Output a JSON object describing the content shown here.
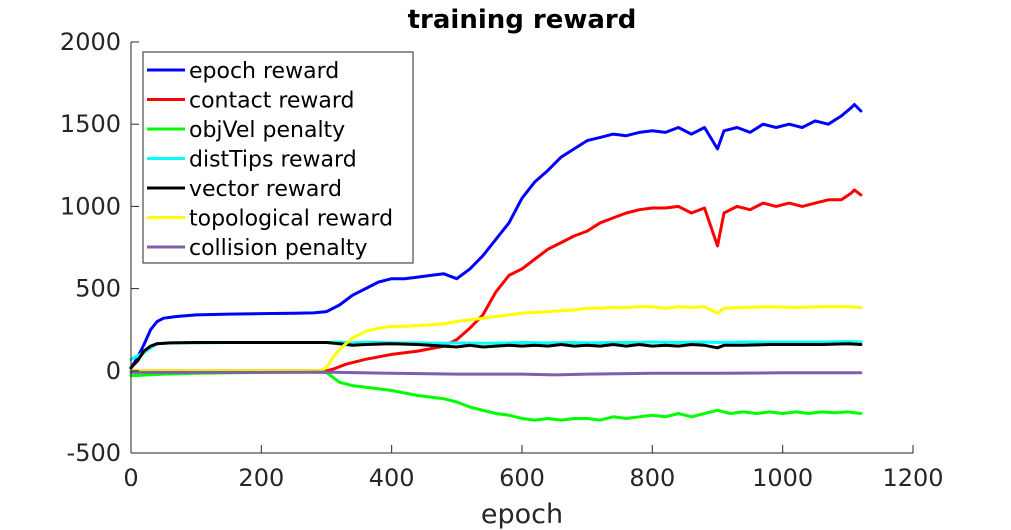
{
  "chart_data": {
    "type": "line",
    "title": "training reward",
    "xlabel": "epoch",
    "ylabel": "",
    "xlim": [
      0,
      1200
    ],
    "ylim": [
      -500,
      2000
    ],
    "xticks": [
      0,
      200,
      400,
      600,
      800,
      1000,
      1200
    ],
    "yticks": [
      -500,
      0,
      500,
      1000,
      1500,
      2000
    ],
    "x_tick_labels": [
      "0",
      "200",
      "400",
      "600",
      "800",
      "1000",
      "1200"
    ],
    "y_tick_labels": [
      "-500",
      "0",
      "500",
      "1000",
      "1500",
      "2000"
    ],
    "legend": "top-left",
    "grid": false,
    "series": [
      {
        "name": "epoch reward",
        "color": "#0000ff",
        "points": [
          [
            0,
            15
          ],
          [
            10,
            80
          ],
          [
            20,
            160
          ],
          [
            30,
            250
          ],
          [
            40,
            300
          ],
          [
            50,
            320
          ],
          [
            70,
            330
          ],
          [
            100,
            340
          ],
          [
            150,
            345
          ],
          [
            200,
            348
          ],
          [
            250,
            350
          ],
          [
            280,
            352
          ],
          [
            300,
            360
          ],
          [
            320,
            400
          ],
          [
            340,
            460
          ],
          [
            360,
            500
          ],
          [
            380,
            540
          ],
          [
            400,
            560
          ],
          [
            420,
            560
          ],
          [
            440,
            570
          ],
          [
            460,
            580
          ],
          [
            480,
            590
          ],
          [
            500,
            560
          ],
          [
            520,
            620
          ],
          [
            540,
            700
          ],
          [
            560,
            800
          ],
          [
            580,
            900
          ],
          [
            600,
            1050
          ],
          [
            620,
            1150
          ],
          [
            640,
            1220
          ],
          [
            660,
            1300
          ],
          [
            680,
            1350
          ],
          [
            700,
            1400
          ],
          [
            720,
            1420
          ],
          [
            740,
            1440
          ],
          [
            760,
            1430
          ],
          [
            780,
            1450
          ],
          [
            800,
            1460
          ],
          [
            820,
            1450
          ],
          [
            840,
            1480
          ],
          [
            860,
            1440
          ],
          [
            880,
            1480
          ],
          [
            900,
            1350
          ],
          [
            910,
            1460
          ],
          [
            930,
            1480
          ],
          [
            950,
            1450
          ],
          [
            970,
            1500
          ],
          [
            990,
            1480
          ],
          [
            1010,
            1500
          ],
          [
            1030,
            1480
          ],
          [
            1050,
            1520
          ],
          [
            1070,
            1500
          ],
          [
            1090,
            1550
          ],
          [
            1105,
            1600
          ],
          [
            1110,
            1620
          ],
          [
            1120,
            1580
          ]
        ]
      },
      {
        "name": "contact reward",
        "color": "#ff0000",
        "points": [
          [
            0,
            0
          ],
          [
            100,
            0
          ],
          [
            200,
            0
          ],
          [
            300,
            0
          ],
          [
            310,
            10
          ],
          [
            330,
            40
          ],
          [
            360,
            70
          ],
          [
            400,
            100
          ],
          [
            440,
            120
          ],
          [
            480,
            150
          ],
          [
            500,
            190
          ],
          [
            520,
            260
          ],
          [
            540,
            340
          ],
          [
            560,
            480
          ],
          [
            580,
            580
          ],
          [
            600,
            620
          ],
          [
            620,
            680
          ],
          [
            640,
            740
          ],
          [
            660,
            780
          ],
          [
            680,
            820
          ],
          [
            700,
            850
          ],
          [
            720,
            900
          ],
          [
            740,
            930
          ],
          [
            760,
            960
          ],
          [
            780,
            980
          ],
          [
            800,
            990
          ],
          [
            820,
            990
          ],
          [
            840,
            1000
          ],
          [
            860,
            960
          ],
          [
            880,
            990
          ],
          [
            900,
            760
          ],
          [
            910,
            960
          ],
          [
            930,
            1000
          ],
          [
            950,
            980
          ],
          [
            970,
            1020
          ],
          [
            990,
            1000
          ],
          [
            1010,
            1020
          ],
          [
            1030,
            1000
          ],
          [
            1050,
            1020
          ],
          [
            1070,
            1040
          ],
          [
            1090,
            1040
          ],
          [
            1105,
            1080
          ],
          [
            1110,
            1100
          ],
          [
            1120,
            1070
          ]
        ]
      },
      {
        "name": "objVel penalty",
        "color": "#00ff00",
        "points": [
          [
            0,
            -30
          ],
          [
            50,
            -20
          ],
          [
            100,
            -15
          ],
          [
            200,
            -10
          ],
          [
            280,
            -8
          ],
          [
            300,
            -10
          ],
          [
            320,
            -70
          ],
          [
            340,
            -90
          ],
          [
            360,
            -100
          ],
          [
            400,
            -120
          ],
          [
            440,
            -150
          ],
          [
            480,
            -170
          ],
          [
            500,
            -190
          ],
          [
            520,
            -220
          ],
          [
            540,
            -240
          ],
          [
            560,
            -260
          ],
          [
            580,
            -270
          ],
          [
            600,
            -290
          ],
          [
            620,
            -300
          ],
          [
            640,
            -290
          ],
          [
            660,
            -300
          ],
          [
            680,
            -290
          ],
          [
            700,
            -290
          ],
          [
            720,
            -300
          ],
          [
            740,
            -280
          ],
          [
            760,
            -290
          ],
          [
            780,
            -280
          ],
          [
            800,
            -270
          ],
          [
            820,
            -280
          ],
          [
            840,
            -260
          ],
          [
            860,
            -280
          ],
          [
            880,
            -260
          ],
          [
            900,
            -240
          ],
          [
            920,
            -260
          ],
          [
            940,
            -250
          ],
          [
            960,
            -260
          ],
          [
            980,
            -250
          ],
          [
            1000,
            -260
          ],
          [
            1020,
            -250
          ],
          [
            1040,
            -260
          ],
          [
            1060,
            -250
          ],
          [
            1080,
            -255
          ],
          [
            1100,
            -250
          ],
          [
            1120,
            -260
          ]
        ]
      },
      {
        "name": "distTips reward",
        "color": "#00ffff",
        "points": [
          [
            0,
            70
          ],
          [
            10,
            90
          ],
          [
            20,
            110
          ],
          [
            30,
            140
          ],
          [
            40,
            165
          ],
          [
            60,
            170
          ],
          [
            100,
            170
          ],
          [
            150,
            172
          ],
          [
            200,
            172
          ],
          [
            250,
            172
          ],
          [
            300,
            172
          ],
          [
            320,
            175
          ],
          [
            340,
            170
          ],
          [
            360,
            175
          ],
          [
            400,
            170
          ],
          [
            440,
            170
          ],
          [
            480,
            168
          ],
          [
            500,
            170
          ],
          [
            540,
            168
          ],
          [
            580,
            170
          ],
          [
            600,
            172
          ],
          [
            640,
            170
          ],
          [
            680,
            172
          ],
          [
            700,
            170
          ],
          [
            740,
            172
          ],
          [
            780,
            172
          ],
          [
            800,
            175
          ],
          [
            840,
            172
          ],
          [
            880,
            175
          ],
          [
            900,
            172
          ],
          [
            940,
            175
          ],
          [
            980,
            175
          ],
          [
            1020,
            175
          ],
          [
            1060,
            175
          ],
          [
            1100,
            178
          ],
          [
            1120,
            175
          ]
        ]
      },
      {
        "name": "vector reward",
        "color": "#000000",
        "points": [
          [
            0,
            20
          ],
          [
            10,
            60
          ],
          [
            20,
            120
          ],
          [
            30,
            150
          ],
          [
            40,
            165
          ],
          [
            60,
            170
          ],
          [
            100,
            172
          ],
          [
            150,
            172
          ],
          [
            200,
            172
          ],
          [
            250,
            172
          ],
          [
            300,
            172
          ],
          [
            320,
            165
          ],
          [
            340,
            155
          ],
          [
            360,
            160
          ],
          [
            400,
            165
          ],
          [
            440,
            160
          ],
          [
            480,
            150
          ],
          [
            500,
            145
          ],
          [
            520,
            155
          ],
          [
            540,
            145
          ],
          [
            560,
            150
          ],
          [
            580,
            155
          ],
          [
            600,
            150
          ],
          [
            620,
            155
          ],
          [
            640,
            150
          ],
          [
            660,
            160
          ],
          [
            680,
            150
          ],
          [
            700,
            155
          ],
          [
            720,
            150
          ],
          [
            740,
            160
          ],
          [
            760,
            150
          ],
          [
            780,
            160
          ],
          [
            800,
            150
          ],
          [
            820,
            155
          ],
          [
            840,
            150
          ],
          [
            860,
            160
          ],
          [
            880,
            155
          ],
          [
            900,
            140
          ],
          [
            910,
            155
          ],
          [
            940,
            155
          ],
          [
            980,
            160
          ],
          [
            1020,
            160
          ],
          [
            1060,
            160
          ],
          [
            1100,
            165
          ],
          [
            1120,
            160
          ]
        ]
      },
      {
        "name": "topological reward",
        "color": "#ffff00",
        "points": [
          [
            0,
            0
          ],
          [
            100,
            0
          ],
          [
            200,
            0
          ],
          [
            290,
            0
          ],
          [
            300,
            20
          ],
          [
            310,
            80
          ],
          [
            320,
            130
          ],
          [
            340,
            200
          ],
          [
            360,
            240
          ],
          [
            380,
            260
          ],
          [
            400,
            270
          ],
          [
            420,
            270
          ],
          [
            440,
            275
          ],
          [
            460,
            280
          ],
          [
            480,
            285
          ],
          [
            500,
            300
          ],
          [
            520,
            310
          ],
          [
            540,
            320
          ],
          [
            560,
            330
          ],
          [
            580,
            340
          ],
          [
            600,
            350
          ],
          [
            620,
            355
          ],
          [
            640,
            360
          ],
          [
            660,
            365
          ],
          [
            680,
            370
          ],
          [
            700,
            380
          ],
          [
            720,
            380
          ],
          [
            740,
            385
          ],
          [
            760,
            385
          ],
          [
            780,
            390
          ],
          [
            800,
            390
          ],
          [
            820,
            380
          ],
          [
            840,
            390
          ],
          [
            860,
            385
          ],
          [
            880,
            390
          ],
          [
            900,
            350
          ],
          [
            910,
            380
          ],
          [
            940,
            385
          ],
          [
            980,
            390
          ],
          [
            1020,
            385
          ],
          [
            1060,
            390
          ],
          [
            1100,
            390
          ],
          [
            1120,
            385
          ]
        ]
      },
      {
        "name": "collision penalty",
        "color": "#7e5fad",
        "points": [
          [
            0,
            -10
          ],
          [
            200,
            -10
          ],
          [
            300,
            -8
          ],
          [
            400,
            -15
          ],
          [
            500,
            -20
          ],
          [
            600,
            -20
          ],
          [
            650,
            -25
          ],
          [
            700,
            -20
          ],
          [
            800,
            -15
          ],
          [
            900,
            -15
          ],
          [
            1000,
            -12
          ],
          [
            1120,
            -12
          ]
        ]
      }
    ]
  }
}
